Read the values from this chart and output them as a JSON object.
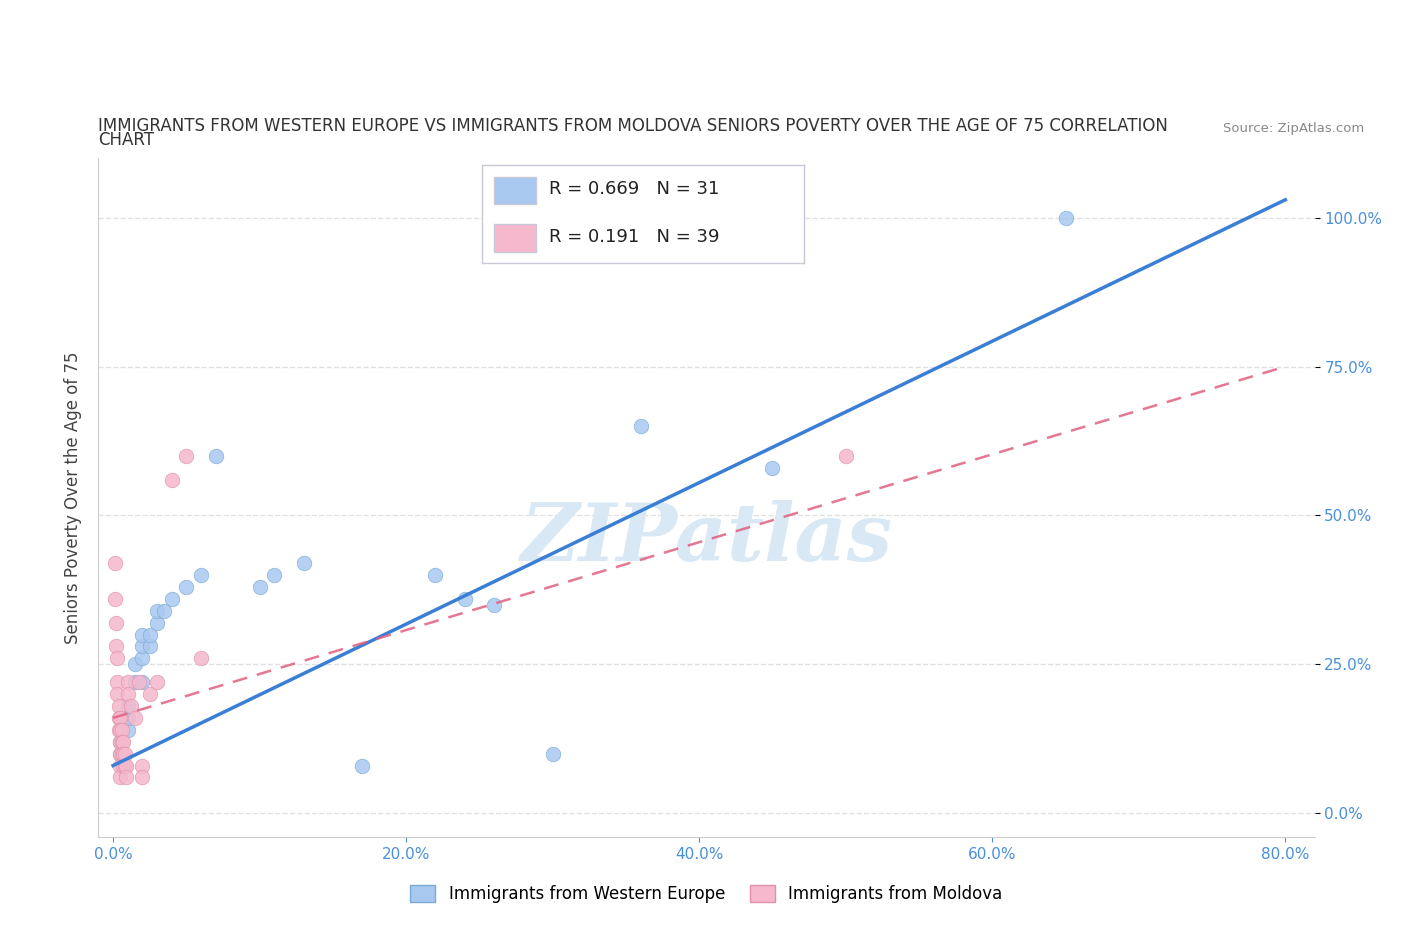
{
  "title_line1": "IMMIGRANTS FROM WESTERN EUROPE VS IMMIGRANTS FROM MOLDOVA SENIORS POVERTY OVER THE AGE OF 75 CORRELATION",
  "title_line2": "CHART",
  "source": "Source: ZipAtlas.com",
  "ylabel": "Seniors Poverty Over the Age of 75",
  "legend_labels": [
    "Immigrants from Western Europe",
    "Immigrants from Moldova"
  ],
  "blue_color": "#a8c8f0",
  "blue_edge_color": "#7aaad0",
  "pink_color": "#f5b8cc",
  "pink_edge_color": "#e090a8",
  "blue_line_color": "#3a7fd5",
  "pink_line_color": "#e06080",
  "watermark_color": "#d8e8f5",
  "blue_scatter": [
    [
      0.005,
      0.1
    ],
    [
      0.005,
      0.12
    ],
    [
      0.01,
      0.14
    ],
    [
      0.01,
      0.16
    ],
    [
      0.01,
      0.18
    ],
    [
      0.015,
      0.22
    ],
    [
      0.015,
      0.25
    ],
    [
      0.02,
      0.22
    ],
    [
      0.02,
      0.26
    ],
    [
      0.02,
      0.28
    ],
    [
      0.02,
      0.3
    ],
    [
      0.025,
      0.28
    ],
    [
      0.025,
      0.3
    ],
    [
      0.03,
      0.32
    ],
    [
      0.03,
      0.34
    ],
    [
      0.035,
      0.34
    ],
    [
      0.04,
      0.36
    ],
    [
      0.05,
      0.38
    ],
    [
      0.06,
      0.4
    ],
    [
      0.07,
      0.6
    ],
    [
      0.1,
      0.38
    ],
    [
      0.11,
      0.4
    ],
    [
      0.13,
      0.42
    ],
    [
      0.17,
      0.08
    ],
    [
      0.22,
      0.4
    ],
    [
      0.24,
      0.36
    ],
    [
      0.26,
      0.35
    ],
    [
      0.3,
      0.1
    ],
    [
      0.36,
      0.65
    ],
    [
      0.45,
      0.58
    ],
    [
      0.65,
      1.0
    ]
  ],
  "pink_scatter": [
    [
      0.001,
      0.42
    ],
    [
      0.001,
      0.36
    ],
    [
      0.002,
      0.32
    ],
    [
      0.002,
      0.28
    ],
    [
      0.003,
      0.26
    ],
    [
      0.003,
      0.22
    ],
    [
      0.003,
      0.2
    ],
    [
      0.004,
      0.18
    ],
    [
      0.004,
      0.16
    ],
    [
      0.004,
      0.14
    ],
    [
      0.005,
      0.16
    ],
    [
      0.005,
      0.14
    ],
    [
      0.005,
      0.12
    ],
    [
      0.005,
      0.1
    ],
    [
      0.005,
      0.08
    ],
    [
      0.005,
      0.06
    ],
    [
      0.006,
      0.14
    ],
    [
      0.006,
      0.12
    ],
    [
      0.006,
      0.1
    ],
    [
      0.007,
      0.12
    ],
    [
      0.007,
      0.1
    ],
    [
      0.007,
      0.08
    ],
    [
      0.008,
      0.1
    ],
    [
      0.008,
      0.08
    ],
    [
      0.009,
      0.08
    ],
    [
      0.009,
      0.06
    ],
    [
      0.01,
      0.22
    ],
    [
      0.01,
      0.2
    ],
    [
      0.012,
      0.18
    ],
    [
      0.015,
      0.16
    ],
    [
      0.018,
      0.22
    ],
    [
      0.02,
      0.08
    ],
    [
      0.02,
      0.06
    ],
    [
      0.025,
      0.2
    ],
    [
      0.03,
      0.22
    ],
    [
      0.04,
      0.56
    ],
    [
      0.05,
      0.6
    ],
    [
      0.06,
      0.26
    ],
    [
      0.5,
      0.6
    ]
  ],
  "xlim": [
    -0.01,
    0.82
  ],
  "ylim": [
    -0.04,
    1.1
  ],
  "x_ticks": [
    0.0,
    0.2,
    0.4,
    0.6,
    0.8
  ],
  "y_ticks": [
    0.0,
    0.25,
    0.5,
    0.75,
    1.0
  ],
  "background_color": "#ffffff",
  "grid_color": "#dddddd",
  "tick_color": "#4a90d9",
  "legend_box_color": "#f0f0f8",
  "legend_border_color": "#c8c8d8"
}
